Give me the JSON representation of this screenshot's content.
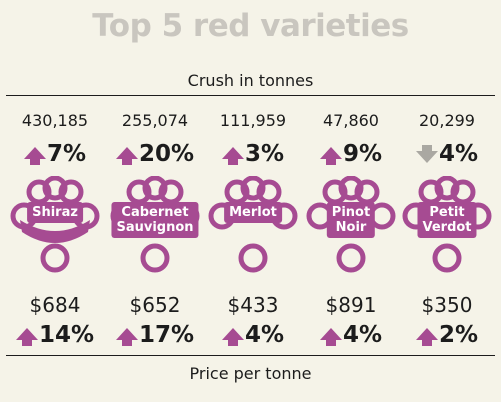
{
  "title": "Top 5 red varieties",
  "subtitle": "Crush in tonnes",
  "footer": "Price per tonne",
  "colors": {
    "accent": "#a64b92",
    "down": "#aaa8a2",
    "title": "#c9c6bf"
  },
  "varieties": [
    {
      "name": "Shiraz",
      "crush": "430,185",
      "crush_change": "7%",
      "crush_dir": "up",
      "price": "$684",
      "price_change": "14%",
      "price_dir": "up"
    },
    {
      "name": "Cabernet\nSauvignon",
      "crush": "255,074",
      "crush_change": "20%",
      "crush_dir": "up",
      "price": "$652",
      "price_change": "17%",
      "price_dir": "up"
    },
    {
      "name": "Merlot",
      "crush": "111,959",
      "crush_change": "3%",
      "crush_dir": "up",
      "price": "$433",
      "price_change": "4%",
      "price_dir": "up"
    },
    {
      "name": "Pinot\nNoir",
      "crush": "47,860",
      "crush_change": "9%",
      "crush_dir": "up",
      "price": "$891",
      "price_change": "4%",
      "price_dir": "up"
    },
    {
      "name": "Petit\nVerdot",
      "crush": "20,299",
      "crush_change": "4%",
      "crush_dir": "down",
      "price": "$350",
      "price_change": "2%",
      "price_dir": "up"
    }
  ]
}
